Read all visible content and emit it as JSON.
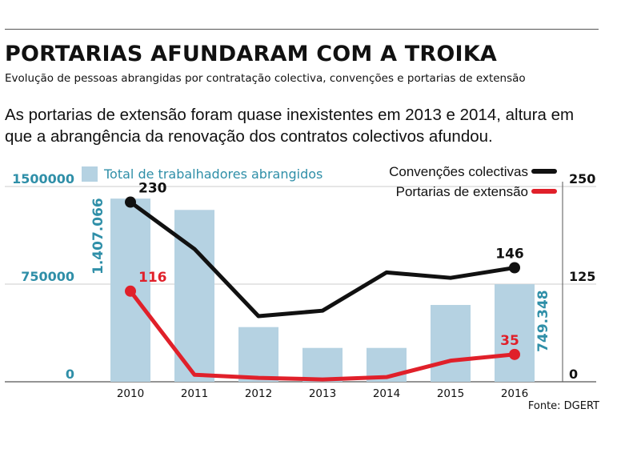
{
  "header": {
    "title": "PORTARIAS AFUNDARAM COM A TROIKA",
    "subtitle": "Evolução de pessoas abrangidas por contratação colectiva, convenções e portarias de extensão",
    "lede": "As portarias de extensão foram quase inexistentes em 2013 e 2014, altura em que a abrangência da renovação dos contratos colectivos afundou."
  },
  "source": "Fonte: DGERT",
  "colors": {
    "bars": "#b5d2e2",
    "bar_label": "#2f8fa8",
    "convencoes": "#111111",
    "portarias": "#e0202a",
    "axis": "#555555"
  },
  "chart_data": {
    "type": "bar",
    "categories": [
      "2010",
      "2011",
      "2012",
      "2013",
      "2014",
      "2015",
      "2016"
    ],
    "series": [
      {
        "name": "Total de trabalhadores abrangidos",
        "type": "bar",
        "axis": "left",
        "values": [
          1407066,
          1320000,
          420000,
          260000,
          260000,
          590000,
          749348
        ],
        "labels": [
          "1.407.066",
          "",
          "",
          "",
          "",
          "",
          "749.348"
        ]
      },
      {
        "name": "Convenções colectivas",
        "type": "line",
        "axis": "right",
        "values": [
          230,
          170,
          84,
          91,
          140,
          133,
          146
        ],
        "labels": [
          "230",
          "",
          "",
          "",
          "",
          "",
          "146"
        ]
      },
      {
        "name": "Portarias de extensão",
        "type": "line",
        "axis": "right",
        "values": [
          116,
          9,
          5,
          3,
          6,
          27,
          35
        ],
        "labels": [
          "116",
          "",
          "",
          "",
          "",
          "",
          "35"
        ]
      }
    ],
    "y_left": {
      "ticks": [
        "0",
        "750000",
        "1500000"
      ],
      "range": [
        0,
        1500000
      ]
    },
    "y_right": {
      "ticks": [
        "0",
        "125",
        "250"
      ],
      "range": [
        0,
        250
      ]
    },
    "legend": [
      "Total de trabalhadores abrangidos",
      "Convenções colectivas",
      "Portarias de extensão"
    ]
  }
}
